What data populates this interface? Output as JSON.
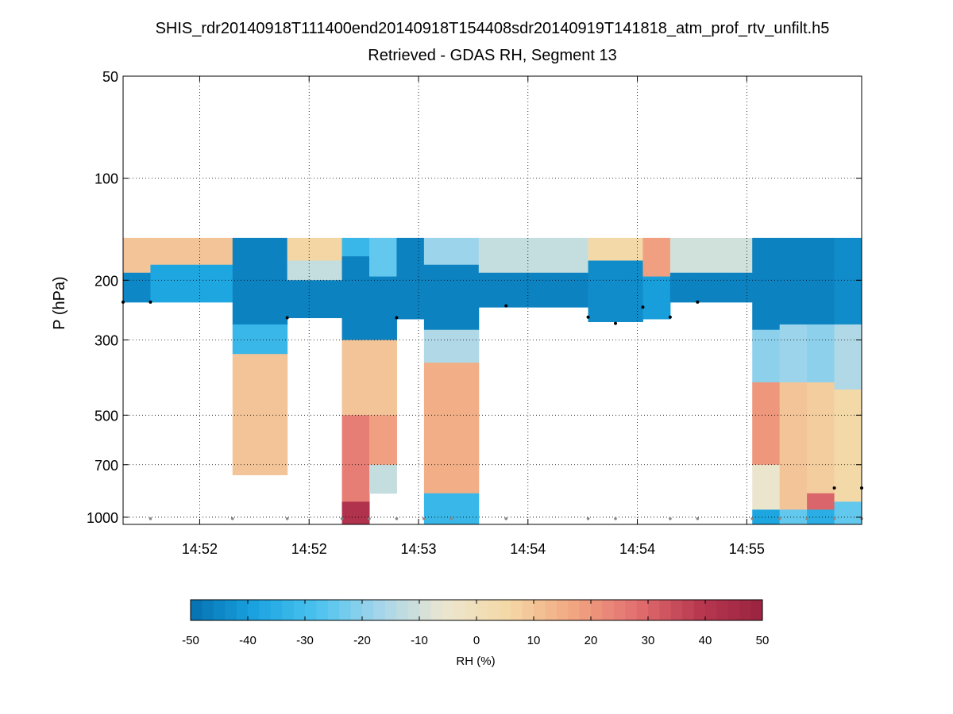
{
  "chart_data": {
    "type": "heatmap",
    "title": "SHIS_rdr20140918T111400end20140918T154408sdr20140919T141818_atm_prof_rtv_unfilt.h5",
    "subtitle": "Retrieved - GDAS RH, Segment 13",
    "xlabel": "",
    "ylabel": "P (hPa)",
    "y_scale": "log",
    "y_reversed": true,
    "ylim": [
      1050,
      50
    ],
    "y_ticks": [
      50,
      100,
      200,
      300,
      500,
      700,
      1000
    ],
    "y_tick_labels": [
      "50",
      "100",
      "200",
      "300",
      "500",
      "700",
      "1000"
    ],
    "xlim": [
      0,
      27
    ],
    "x_ticks": [
      2.8,
      6.8,
      10.8,
      14.8,
      18.8,
      22.8
    ],
    "x_tick_labels": [
      "14:52",
      "14:52",
      "14:53",
      "14:54",
      "14:54",
      "14:55"
    ],
    "grid": true,
    "grid_style": "dotted",
    "colorbar": {
      "label": "RH (%)",
      "range": [
        -50,
        50
      ],
      "ticks": [
        -50,
        -40,
        -30,
        -20,
        -10,
        0,
        10,
        20,
        30,
        40,
        50
      ],
      "tick_labels": [
        "-50",
        "-40",
        "-30",
        "-20",
        "-10",
        "0",
        "10",
        "20",
        "30",
        "40",
        "50"
      ],
      "levels": 50
    },
    "colormap": [
      "#0570b0",
      "#1aa3e0",
      "#4cc3ef",
      "#a7d6ea",
      "#ece6cf",
      "#f4d8a6",
      "#f2a782",
      "#e37070",
      "#b83850",
      "#9a2340"
    ],
    "series": [
      {
        "name": "profile-1",
        "x_start": 0,
        "x_end": 1,
        "segments": [
          {
            "p_top": 150,
            "p_bot": 190,
            "rh": 10
          },
          {
            "p_top": 190,
            "p_bot": 232,
            "rh": -45
          }
        ]
      },
      {
        "name": "profile-2",
        "x_start": 1,
        "x_end": 4,
        "segments": [
          {
            "p_top": 150,
            "p_bot": 180,
            "rh": 10
          },
          {
            "p_top": 180,
            "p_bot": 232,
            "rh": -38
          }
        ]
      },
      {
        "name": "profile-3",
        "x_start": 4,
        "x_end": 6,
        "segments": [
          {
            "p_top": 150,
            "p_bot": 270,
            "rh": -46
          },
          {
            "p_top": 270,
            "p_bot": 330,
            "rh": -32
          },
          {
            "p_top": 330,
            "p_bot": 750,
            "rh": 10
          }
        ]
      },
      {
        "name": "profile-4",
        "x_start": 6,
        "x_end": 8,
        "segments": [
          {
            "p_top": 150,
            "p_bot": 175,
            "rh": 6
          },
          {
            "p_top": 175,
            "p_bot": 200,
            "rh": -12
          },
          {
            "p_top": 200,
            "p_bot": 258,
            "rh": -46
          }
        ]
      },
      {
        "name": "profile-5",
        "x_start": 8,
        "x_end": 9,
        "segments": [
          {
            "p_top": 150,
            "p_bot": 170,
            "rh": -32
          },
          {
            "p_top": 170,
            "p_bot": 300,
            "rh": -46
          },
          {
            "p_top": 300,
            "p_bot": 500,
            "rh": 10
          },
          {
            "p_top": 500,
            "p_bot": 900,
            "rh": 25
          },
          {
            "p_top": 900,
            "p_bot": 1050,
            "rh": 42
          }
        ]
      },
      {
        "name": "profile-6",
        "x_start": 9,
        "x_end": 10,
        "segments": [
          {
            "p_top": 150,
            "p_bot": 195,
            "rh": -25
          },
          {
            "p_top": 195,
            "p_bot": 300,
            "rh": -46
          },
          {
            "p_top": 300,
            "p_bot": 500,
            "rh": 10
          },
          {
            "p_top": 500,
            "p_bot": 700,
            "rh": 18
          },
          {
            "p_top": 700,
            "p_bot": 850,
            "rh": -12
          }
        ]
      },
      {
        "name": "profile-7",
        "x_start": 10,
        "x_end": 11,
        "segments": [
          {
            "p_top": 150,
            "p_bot": 260,
            "rh": -46
          }
        ]
      },
      {
        "name": "profile-8",
        "x_start": 11,
        "x_end": 13,
        "segments": [
          {
            "p_top": 150,
            "p_bot": 180,
            "rh": -18
          },
          {
            "p_top": 180,
            "p_bot": 280,
            "rh": -46
          },
          {
            "p_top": 280,
            "p_bot": 350,
            "rh": -15
          },
          {
            "p_top": 350,
            "p_bot": 850,
            "rh": 15
          },
          {
            "p_top": 850,
            "p_bot": 1050,
            "rh": -32
          }
        ]
      },
      {
        "name": "profile-9",
        "x_start": 13,
        "x_end": 17,
        "segments": [
          {
            "p_top": 150,
            "p_bot": 190,
            "rh": -12
          },
          {
            "p_top": 190,
            "p_bot": 240,
            "rh": -46
          }
        ]
      },
      {
        "name": "profile-10",
        "x_start": 17,
        "x_end": 19,
        "segments": [
          {
            "p_top": 150,
            "p_bot": 175,
            "rh": 5
          },
          {
            "p_top": 175,
            "p_bot": 265,
            "rh": -44
          }
        ]
      },
      {
        "name": "profile-11",
        "x_start": 19,
        "x_end": 20,
        "segments": [
          {
            "p_top": 150,
            "p_bot": 195,
            "rh": 18
          },
          {
            "p_top": 195,
            "p_bot": 260,
            "rh": -40
          }
        ]
      },
      {
        "name": "profile-12",
        "x_start": 20,
        "x_end": 23,
        "segments": [
          {
            "p_top": 150,
            "p_bot": 190,
            "rh": -10
          },
          {
            "p_top": 190,
            "p_bot": 232,
            "rh": -46
          }
        ]
      },
      {
        "name": "profile-13",
        "x_start": 23,
        "x_end": 24,
        "segments": [
          {
            "p_top": 150,
            "p_bot": 280,
            "rh": -46
          },
          {
            "p_top": 280,
            "p_bot": 400,
            "rh": -20
          },
          {
            "p_top": 400,
            "p_bot": 700,
            "rh": 20
          },
          {
            "p_top": 700,
            "p_bot": 950,
            "rh": -5
          },
          {
            "p_top": 950,
            "p_bot": 1050,
            "rh": -38
          }
        ]
      },
      {
        "name": "profile-14",
        "x_start": 24,
        "x_end": 25,
        "segments": [
          {
            "p_top": 150,
            "p_bot": 270,
            "rh": -46
          },
          {
            "p_top": 270,
            "p_bot": 400,
            "rh": -18
          },
          {
            "p_top": 400,
            "p_bot": 950,
            "rh": 10
          },
          {
            "p_top": 950,
            "p_bot": 1050,
            "rh": -25
          }
        ]
      },
      {
        "name": "profile-15",
        "x_start": 25,
        "x_end": 26,
        "segments": [
          {
            "p_top": 150,
            "p_bot": 270,
            "rh": -46
          },
          {
            "p_top": 270,
            "p_bot": 400,
            "rh": -20
          },
          {
            "p_top": 400,
            "p_bot": 850,
            "rh": 8
          },
          {
            "p_top": 850,
            "p_bot": 950,
            "rh": 30
          },
          {
            "p_top": 950,
            "p_bot": 1050,
            "rh": -35
          }
        ]
      },
      {
        "name": "profile-16",
        "x_start": 26,
        "x_end": 27,
        "segments": [
          {
            "p_top": 150,
            "p_bot": 270,
            "rh": -44
          },
          {
            "p_top": 270,
            "p_bot": 420,
            "rh": -15
          },
          {
            "p_top": 420,
            "p_bot": 900,
            "rh": 5
          },
          {
            "p_top": 900,
            "p_bot": 1050,
            "rh": -25
          }
        ]
      }
    ],
    "markers": {
      "black": [
        {
          "x": 0,
          "p": 232
        },
        {
          "x": 1,
          "p": 232
        },
        {
          "x": 6,
          "p": 258
        },
        {
          "x": 10,
          "p": 258
        },
        {
          "x": 14,
          "p": 238
        },
        {
          "x": 17,
          "p": 257
        },
        {
          "x": 18,
          "p": 268
        },
        {
          "x": 19,
          "p": 240
        },
        {
          "x": 20,
          "p": 257
        },
        {
          "x": 21,
          "p": 232
        },
        {
          "x": 26,
          "p": 820
        },
        {
          "x": 27,
          "p": 820
        }
      ],
      "gray": [
        {
          "x": 1,
          "p": 1010
        },
        {
          "x": 4,
          "p": 1010
        },
        {
          "x": 6,
          "p": 1010
        },
        {
          "x": 8,
          "p": 1010
        },
        {
          "x": 9,
          "p": 1010
        },
        {
          "x": 10,
          "p": 1010
        },
        {
          "x": 11,
          "p": 1010
        },
        {
          "x": 12,
          "p": 1010
        },
        {
          "x": 14,
          "p": 1010
        },
        {
          "x": 17,
          "p": 1010
        },
        {
          "x": 18,
          "p": 1010
        },
        {
          "x": 20,
          "p": 1010
        },
        {
          "x": 21,
          "p": 1010
        },
        {
          "x": 23,
          "p": 1010
        },
        {
          "x": 24,
          "p": 1010
        },
        {
          "x": 25,
          "p": 1010
        },
        {
          "x": 26,
          "p": 1010
        },
        {
          "x": 27,
          "p": 1010
        }
      ]
    }
  }
}
